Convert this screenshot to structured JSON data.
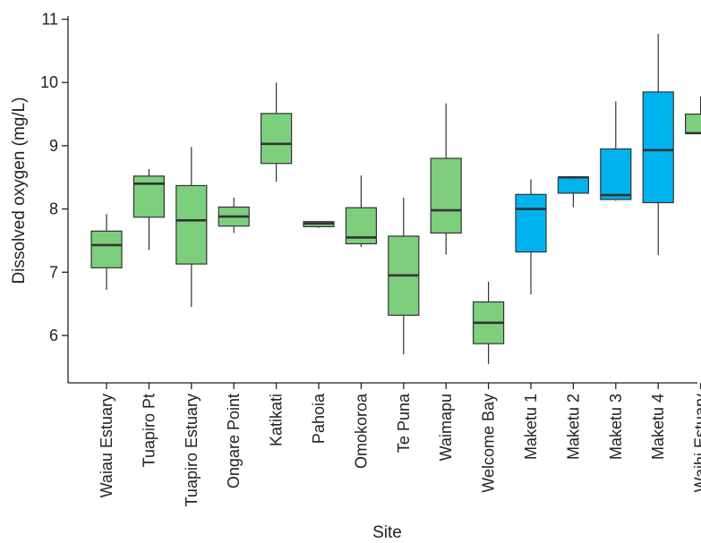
{
  "chart_data": {
    "type": "box",
    "xlabel": "Site",
    "ylabel": "Dissolved oxygen (mg/L)",
    "ylim": [
      5.25,
      11.05
    ],
    "yticks": [
      6,
      7,
      8,
      9,
      10,
      11
    ],
    "grid": false,
    "legend": "none",
    "colors": {
      "group_a": "#7dcf7d",
      "group_b": "#00b2ee",
      "outline": "#333333"
    },
    "categories": [
      "Waiau Estuary",
      "Tuapiro Pt",
      "Tuapiro Estuary",
      "Ongare Point",
      "Katikati",
      "Pahoia",
      "Omokoroa",
      "Te Puna",
      "Waimapu",
      "Welcome Bay",
      "Maketu 1",
      "Maketu 2",
      "Maketu 3",
      "Maketu 4",
      "Waihi Estuary"
    ],
    "groups": [
      "group_a",
      "group_a",
      "group_a",
      "group_a",
      "group_a",
      "group_a",
      "group_a",
      "group_a",
      "group_a",
      "group_a",
      "group_b",
      "group_b",
      "group_b",
      "group_b",
      "group_a"
    ],
    "min": [
      6.72,
      7.35,
      6.45,
      7.62,
      8.43,
      7.7,
      7.4,
      5.7,
      7.28,
      5.55,
      6.65,
      8.03,
      8.13,
      7.27,
      9.2
    ],
    "q1": [
      7.07,
      7.87,
      7.13,
      7.73,
      8.72,
      7.72,
      7.45,
      6.32,
      7.62,
      5.87,
      7.32,
      8.25,
      8.15,
      8.1,
      9.2
    ],
    "median": [
      7.43,
      8.4,
      7.82,
      7.88,
      9.03,
      7.77,
      7.55,
      6.95,
      7.98,
      6.2,
      8.0,
      8.5,
      8.22,
      8.93,
      9.2
    ],
    "q3": [
      7.65,
      8.52,
      8.37,
      8.03,
      9.51,
      7.8,
      8.02,
      7.57,
      8.8,
      6.53,
      8.23,
      8.5,
      8.95,
      9.85,
      9.5
    ],
    "max": [
      7.92,
      8.63,
      8.98,
      8.18,
      10.0,
      7.8,
      8.53,
      8.18,
      9.67,
      6.85,
      8.47,
      8.52,
      9.7,
      10.77,
      9.78
    ]
  }
}
